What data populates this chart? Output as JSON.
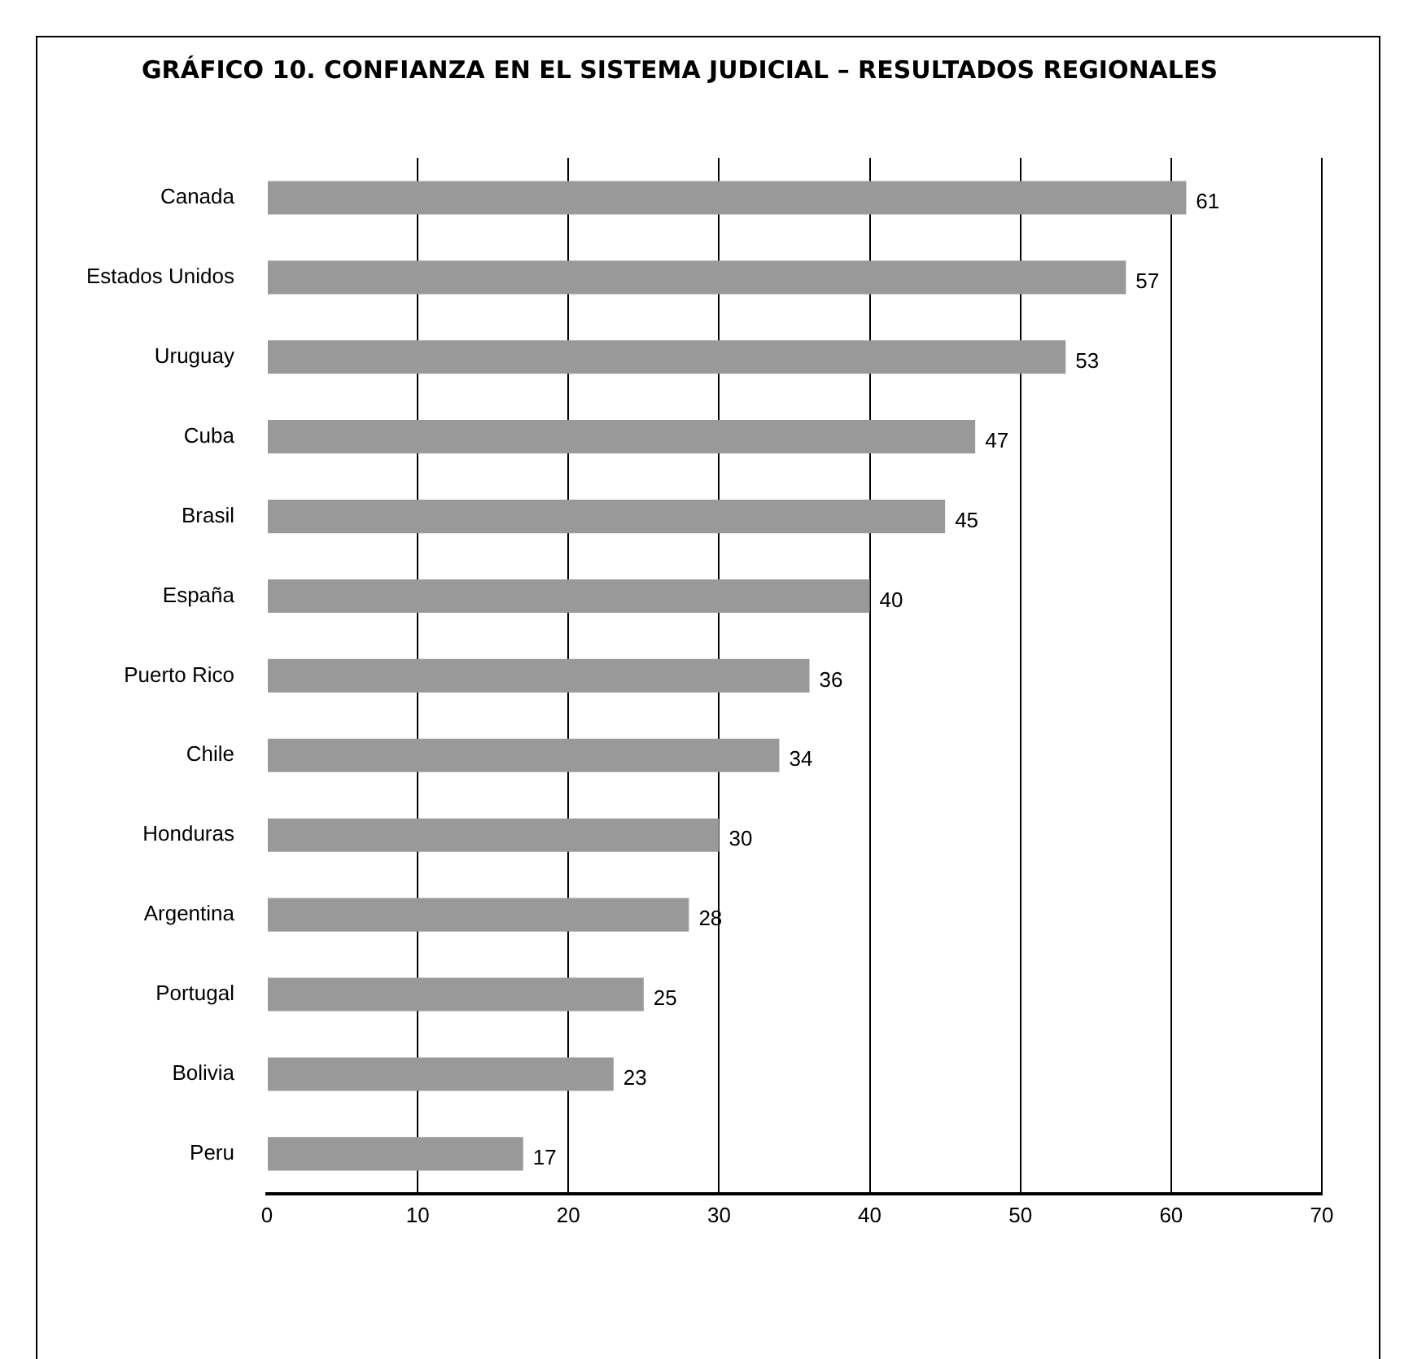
{
  "chart_data": {
    "type": "bar",
    "orientation": "horizontal",
    "title": "GRÁFICO 10. CONFIANZA EN EL SISTEMA JUDICIAL – RESULTADOS REGIONALES",
    "categories": [
      "Canada",
      "Estados Unidos",
      "Uruguay",
      "Cuba",
      "Brasil",
      "España",
      "Puerto Rico",
      "Chile",
      "Honduras",
      "Argentina",
      "Portugal",
      "Bolivia",
      "Peru"
    ],
    "values": [
      61,
      57,
      53,
      47,
      45,
      40,
      36,
      34,
      30,
      28,
      25,
      23,
      17
    ],
    "color": "#999999",
    "xlim": [
      0,
      70
    ],
    "xticks": [
      0,
      10,
      20,
      30,
      40,
      50,
      60,
      70
    ],
    "grid": "x",
    "data_labels": true,
    "legend": false
  }
}
